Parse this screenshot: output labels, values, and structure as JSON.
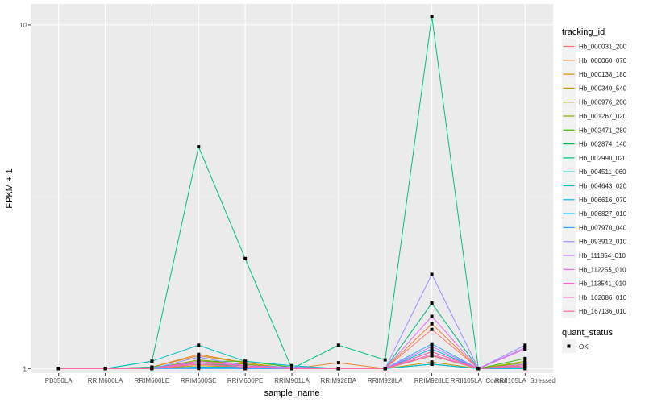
{
  "chart_data": {
    "type": "line",
    "title": "",
    "xlabel": "sample_name",
    "ylabel": "FPKM + 1",
    "y_scale": "log10",
    "ylim": [
      0.97,
      11.5
    ],
    "y_ticks": [
      1,
      10
    ],
    "y_tick_labels": [
      "1",
      "10"
    ],
    "grid": true,
    "categories": [
      "PB350LA",
      "RRIM600LA",
      "RRIM600LE",
      "RRIM600SE",
      "RRIM600PE",
      "RRIM901LA",
      "RRIM928BA",
      "RRIM928LA",
      "RRIM928LE",
      "RRII105LA_Control",
      "RRII105LA_Stressed"
    ],
    "legend": {
      "placement": "right",
      "color_title": "tracking_id",
      "shape_title": "quant_status",
      "shape_entries": [
        "OK"
      ]
    },
    "series": [
      {
        "name": "Hb_000031_200",
        "color": "#F8766D",
        "values": [
          1,
          1,
          1,
          1.03,
          1.01,
          1,
          1,
          1,
          1.3,
          1,
          1.02
        ]
      },
      {
        "name": "Hb_000060_070",
        "color": "#EA8331",
        "values": [
          1,
          1,
          1.01,
          1.09,
          1.04,
          1,
          1.04,
          1,
          1.35,
          1,
          1.01
        ]
      },
      {
        "name": "Hb_000138_180",
        "color": "#D89000",
        "values": [
          1,
          1,
          1.01,
          1.1,
          1.04,
          1,
          1,
          1,
          1.55,
          1,
          1.02
        ]
      },
      {
        "name": "Hb_000340_540",
        "color": "#C09B00",
        "values": [
          1,
          1,
          1,
          1.02,
          1.01,
          1,
          1,
          1,
          1.045,
          1,
          1.01
        ]
      },
      {
        "name": "Hb_000976_200",
        "color": "#A3A500",
        "values": [
          1,
          1,
          1,
          1.05,
          1.03,
          1,
          1,
          1,
          1.03,
          1,
          1.05
        ]
      },
      {
        "name": "Hb_001267_020",
        "color": "#7CAE00",
        "values": [
          1,
          1,
          1,
          1.06,
          1.03,
          1,
          1,
          1,
          1.09,
          1,
          1.04
        ]
      },
      {
        "name": "Hb_002471_280",
        "color": "#39B600",
        "values": [
          1,
          1,
          1,
          1.05,
          1.05,
          1.01,
          1,
          1,
          1.12,
          1,
          1.07
        ]
      },
      {
        "name": "Hb_002874_140",
        "color": "#00BB4E",
        "values": [
          1,
          1,
          1,
          1.03,
          1.02,
          1.01,
          1,
          1,
          1.09,
          1,
          1.03
        ]
      },
      {
        "name": "Hb_002990_020",
        "color": "#00BF7D",
        "values": [
          1,
          1,
          1.05,
          4.42,
          2.09,
          1.0,
          1.17,
          1.06,
          10.6,
          1,
          1.02
        ]
      },
      {
        "name": "Hb_004511_060",
        "color": "#00C1A3",
        "values": [
          1,
          1,
          1.01,
          1.04,
          1.02,
          1,
          1,
          1,
          1.55,
          1,
          1.01
        ]
      },
      {
        "name": "Hb_004643_020",
        "color": "#00BFC4",
        "values": [
          1,
          1,
          1.05,
          1.17,
          1.05,
          1.02,
          1,
          1,
          1.03,
          1,
          1
        ]
      },
      {
        "name": "Hb_006616_070",
        "color": "#00BAE0",
        "values": [
          1,
          1,
          1,
          1.01,
          1.01,
          1,
          1,
          1,
          1.03,
          1,
          1
        ]
      },
      {
        "name": "Hb_006827_010",
        "color": "#00B0F6",
        "values": [
          1,
          1,
          1,
          1.01,
          1.0,
          1,
          1,
          1,
          1.14,
          1,
          1.01
        ]
      },
      {
        "name": "Hb_007970_040",
        "color": "#35A2FF",
        "values": [
          1,
          1,
          1,
          1.0,
          1.0,
          1,
          1,
          1,
          1.18,
          1,
          1.01
        ]
      },
      {
        "name": "Hb_093912_010",
        "color": "#9590FF",
        "values": [
          1,
          1,
          1,
          1.08,
          1.02,
          1.01,
          1,
          1,
          1.88,
          1,
          1.17
        ]
      },
      {
        "name": "Hb_111854_010",
        "color": "#C77CFF",
        "values": [
          1,
          1,
          1,
          1.03,
          1.01,
          1.01,
          1,
          1,
          1.16,
          1,
          1.15
        ]
      },
      {
        "name": "Hb_112255_010",
        "color": "#E76BF3",
        "values": [
          1,
          1,
          1,
          1.03,
          1.01,
          1,
          1,
          1,
          1.42,
          1,
          1.14
        ]
      },
      {
        "name": "Hb_113541_010",
        "color": "#FA62DB",
        "values": [
          1,
          1,
          1,
          1.05,
          1.02,
          1,
          1,
          1,
          1.1,
          1,
          1.03
        ]
      },
      {
        "name": "Hb_162086_010",
        "color": "#FF62BC",
        "values": [
          1,
          1,
          1,
          1.04,
          1.02,
          1,
          1,
          1,
          1.12,
          1,
          1.01
        ]
      },
      {
        "name": "Hb_167136_010",
        "color": "#FF6C91",
        "values": [
          1,
          1,
          1,
          1.03,
          1.01,
          1,
          1,
          1,
          1.09,
          1,
          1.02
        ]
      }
    ]
  }
}
